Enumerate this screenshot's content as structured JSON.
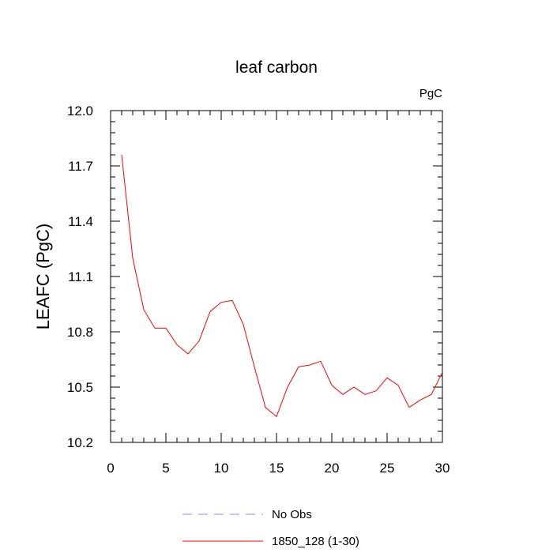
{
  "chart_data": {
    "type": "line",
    "title": "leaf carbon",
    "units_label": "PgC",
    "ylabel": "LEAFC  (PgC)",
    "xlabel": "",
    "xlim": [
      0,
      30
    ],
    "ylim": [
      10.2,
      12.0
    ],
    "x_ticks": [
      0,
      5,
      10,
      15,
      20,
      25,
      30
    ],
    "y_ticks": [
      10.2,
      10.5,
      10.8,
      11.1,
      11.4,
      11.7,
      12.0
    ],
    "y_tick_labels": [
      "10.2",
      "10.5",
      "10.8",
      "11.1",
      "11.4",
      "11.7",
      "12.0"
    ],
    "grid": false,
    "legend_position": "bottom",
    "series": [
      {
        "name": "No Obs",
        "color": "#8c8cf0",
        "dashed": true,
        "x": [],
        "values": []
      },
      {
        "name": "1850_128 (1-30)",
        "color": "#ff0000",
        "dashed": false,
        "x": [
          1,
          2,
          3,
          4,
          5,
          6,
          7,
          8,
          9,
          10,
          11,
          12,
          13,
          14,
          15,
          16,
          17,
          18,
          19,
          20,
          21,
          22,
          23,
          24,
          25,
          26,
          27,
          28,
          29,
          30
        ],
        "values": [
          11.76,
          11.2,
          10.92,
          10.82,
          10.82,
          10.73,
          10.68,
          10.75,
          10.91,
          10.96,
          10.97,
          10.84,
          10.61,
          10.39,
          10.34,
          10.5,
          10.61,
          10.62,
          10.64,
          10.51,
          10.46,
          10.5,
          10.46,
          10.48,
          10.55,
          10.51,
          10.39,
          10.43,
          10.46,
          10.58
        ]
      }
    ]
  }
}
